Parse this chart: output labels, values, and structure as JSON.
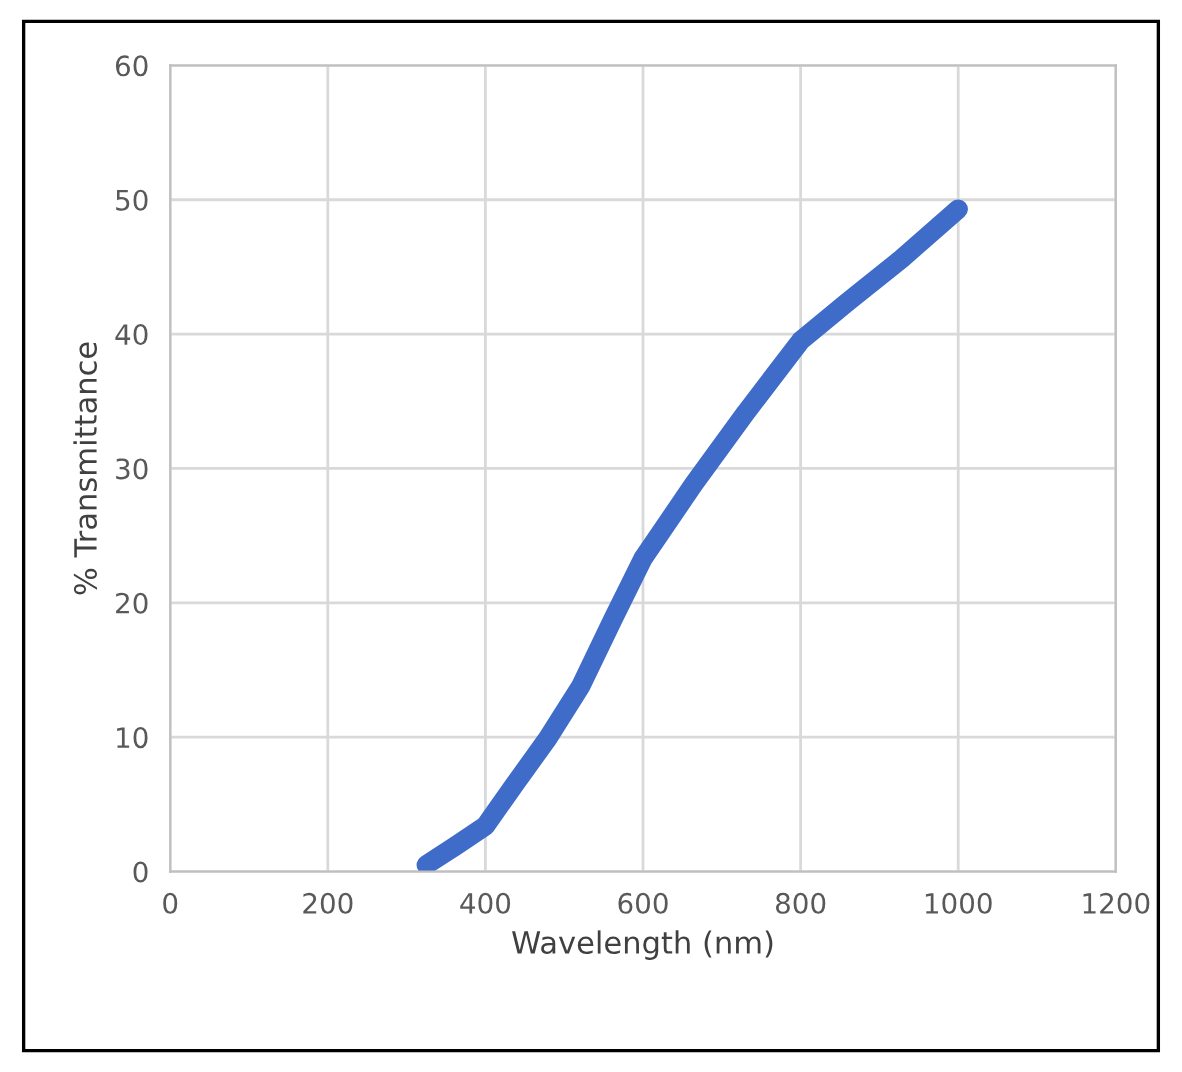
{
  "chart_data": {
    "type": "line",
    "xlabel": "Wavelength (nm)",
    "ylabel": "% Transmittance",
    "x": [
      325,
      362,
      400,
      436,
      479,
      521,
      562,
      600,
      664,
      731,
      800,
      860,
      928,
      1000
    ],
    "series": [
      {
        "color": "#3f6bc9",
        "values": [
          0.5,
          1.9,
          3.4,
          6.4,
          9.9,
          13.8,
          18.8,
          23.3,
          28.8,
          34.2,
          39.5,
          42.4,
          45.6,
          49.3
        ]
      }
    ],
    "xlim": [
      0,
      1200
    ],
    "xticks": [
      0,
      200,
      400,
      600,
      800,
      1000,
      1200
    ],
    "ylim": [
      0,
      60
    ],
    "yticks": [
      0,
      10,
      20,
      30,
      40,
      50,
      60
    ],
    "grid": true,
    "marker": "none",
    "line_style": "solid"
  }
}
